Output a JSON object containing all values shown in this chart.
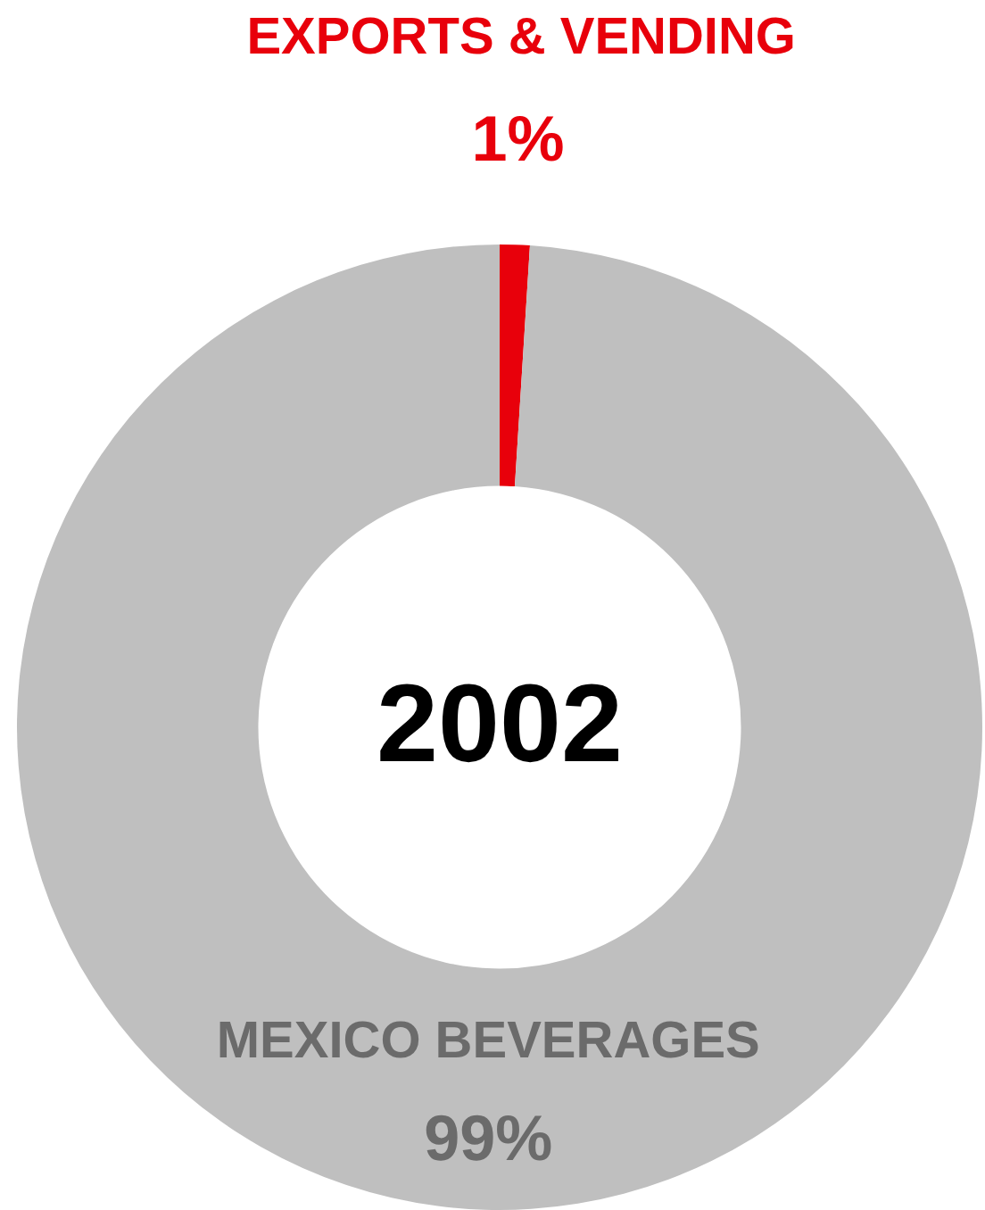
{
  "chart_data": {
    "type": "donut",
    "title": "2002",
    "categories": [
      "EXPORTS & VENDING",
      "MEXICO BEVERAGES"
    ],
    "values": [
      1,
      99
    ],
    "value_labels": [
      "1%",
      "99%"
    ],
    "colors": [
      "#e8000b",
      "#bfbfbf"
    ],
    "legend": false
  }
}
